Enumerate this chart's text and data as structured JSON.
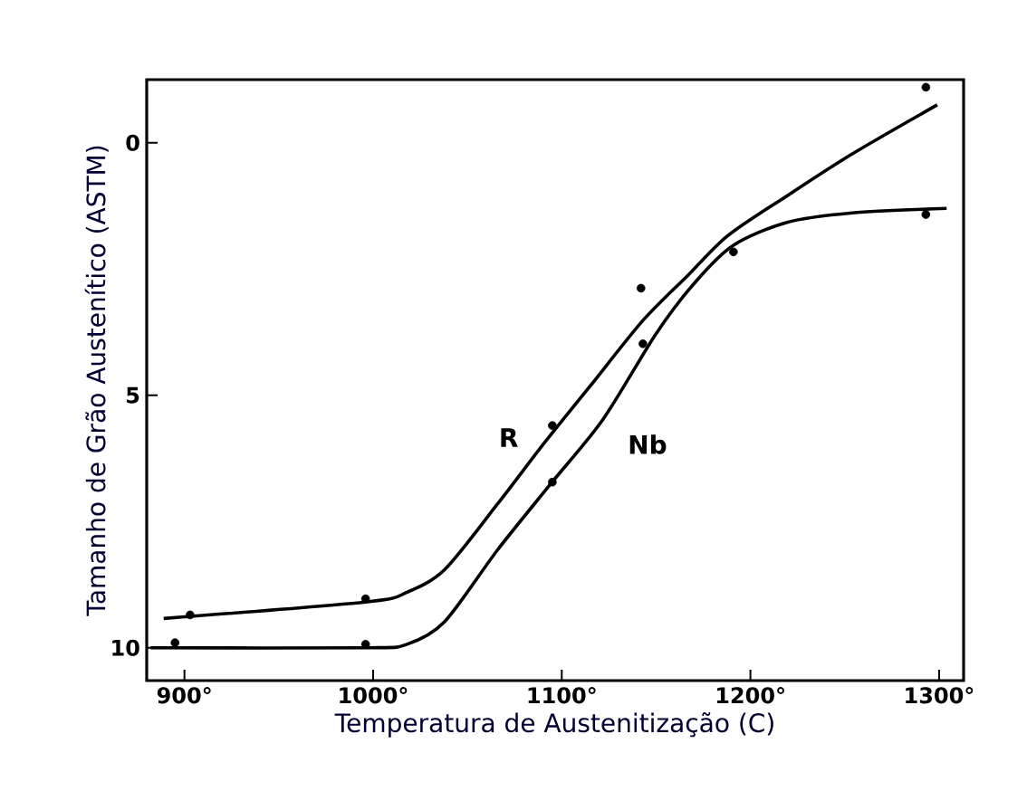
{
  "chart_data": {
    "type": "line",
    "xlabel": "Temperatura de Austenitização (C)",
    "ylabel": "Tamanho de Grão Austenítico (ASTM)",
    "xlim": [
      880,
      1313
    ],
    "ylim": [
      10.65,
      -1.25
    ],
    "xticks": [
      {
        "value": 900,
        "label": "900°"
      },
      {
        "value": 1000,
        "label": "1000°"
      },
      {
        "value": 1100,
        "label": "1100°"
      },
      {
        "value": 1200,
        "label": "1200°"
      },
      {
        "value": 1300,
        "label": "1300°"
      }
    ],
    "yticks": [
      0,
      5,
      10
    ],
    "grid": false,
    "legend": false,
    "line_style": "solid",
    "series": [
      {
        "name": "R",
        "color": "#000000",
        "marker": "none",
        "x": [
          889,
          997,
          1018,
          1038,
          1066,
          1090,
          1115,
          1143,
          1167,
          1188,
          1219,
          1254,
          1299
        ],
        "values": [
          9.42,
          9.09,
          8.9,
          8.45,
          7.15,
          5.98,
          4.82,
          3.52,
          2.62,
          1.84,
          1.06,
          0.22,
          -0.75
        ]
      },
      {
        "name": "Nb",
        "color": "#000000",
        "marker": "none",
        "x": [
          882,
          997,
          1018,
          1038,
          1066,
          1094,
          1122,
          1150,
          1171,
          1191,
          1219,
          1254,
          1304
        ],
        "values": [
          10.0,
          10.0,
          9.93,
          9.48,
          8.06,
          6.76,
          5.47,
          3.78,
          2.75,
          2.03,
          1.58,
          1.39,
          1.3
        ]
      },
      {
        "type": "scatter",
        "color": "#000000",
        "marker": "circle",
        "x": [
          903,
          996,
          1095,
          1142,
          1293
        ],
        "values": [
          9.35,
          9.03,
          5.6,
          2.88,
          -1.1
        ]
      },
      {
        "type": "scatter",
        "color": "#000000",
        "marker": "circle",
        "x": [
          895,
          996,
          1095,
          1143,
          1191,
          1293
        ],
        "values": [
          9.9,
          9.93,
          6.72,
          3.98,
          2.16,
          1.42
        ]
      }
    ]
  }
}
